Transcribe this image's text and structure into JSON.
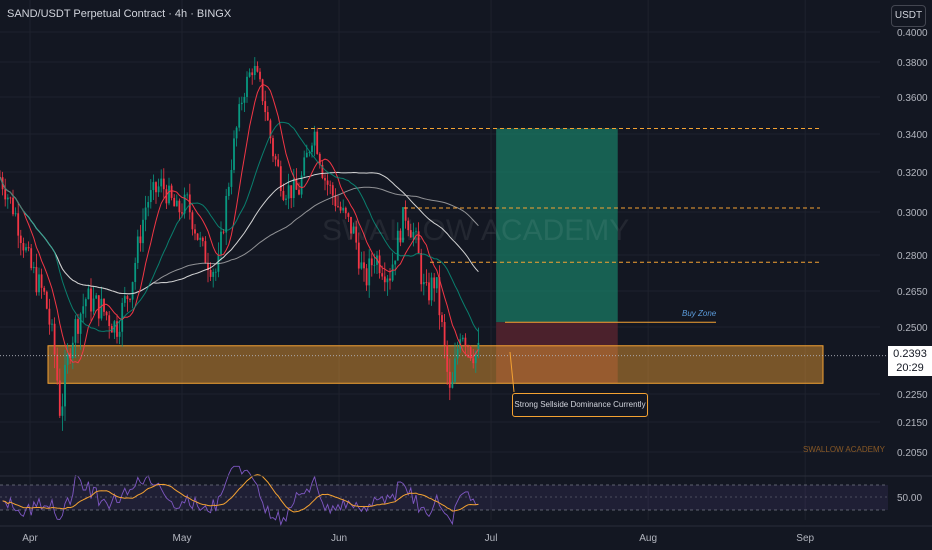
{
  "header": {
    "title": "SAND/USDT Perpetual Contract · 4h · BINGX"
  },
  "currency_label": "USDT",
  "current_price": {
    "value": "0.2393",
    "countdown": "20:29"
  },
  "watermark": "SWALLOW ACADEMY",
  "watermark_small": "SWALLOW ACADEMY",
  "annotations": {
    "buy_zone": "Buy Zone",
    "callout": "Strong Sellside Dominance Currently"
  },
  "colors": {
    "background": "#131722",
    "up_candle": "#089981",
    "down_candle": "#f23645",
    "demand_zone": "#f4a232",
    "target_area": "#1a7a63",
    "stop_area": "#5a2430",
    "sma_long": "#e8e8e8",
    "sma_short": "#c7c7c7",
    "ema_red": "#f23645",
    "ema_green": "#089981",
    "rsi_line": "#7e57c2",
    "rsi_ma": "#f4a232"
  },
  "chart_data": {
    "type": "line",
    "chart_kind": "candlestick",
    "y_axis_ticks": [
      "0.4000",
      "0.3800",
      "0.3600",
      "0.3400",
      "0.3200",
      "0.3000",
      "0.2800",
      "0.2650",
      "0.2500",
      "0.2250",
      "0.2150",
      "0.2050"
    ],
    "x_axis_ticks": [
      "Apr",
      "May",
      "Jun",
      "Jul",
      "Aug",
      "Sep"
    ],
    "price_path": [
      [
        "Mar 26",
        0.318
      ],
      [
        "Mar 29",
        0.3
      ],
      [
        "Apr 1",
        0.275
      ],
      [
        "Apr 4",
        0.262
      ],
      [
        "Apr 6",
        0.238
      ],
      [
        "Apr 7",
        0.218
      ],
      [
        "Apr 9",
        0.245
      ],
      [
        "Apr 12",
        0.262
      ],
      [
        "Apr 15",
        0.258
      ],
      [
        "Apr 18",
        0.25
      ],
      [
        "Apr 21",
        0.268
      ],
      [
        "Apr 24",
        0.305
      ],
      [
        "Apr 27",
        0.314
      ],
      [
        "Apr 30",
        0.3
      ],
      [
        "May 2",
        0.305
      ],
      [
        "May 5",
        0.282
      ],
      [
        "May 8",
        0.272
      ],
      [
        "May 11",
        0.33
      ],
      [
        "May 13",
        0.362
      ],
      [
        "May 15",
        0.378
      ],
      [
        "May 17",
        0.36
      ],
      [
        "May 19",
        0.33
      ],
      [
        "May 21",
        0.312
      ],
      [
        "May 24",
        0.31
      ],
      [
        "May 27",
        0.343
      ],
      [
        "May 29",
        0.318
      ],
      [
        "Jun 1",
        0.302
      ],
      [
        "Jun 4",
        0.29
      ],
      [
        "Jun 6",
        0.268
      ],
      [
        "Jun 8",
        0.28
      ],
      [
        "Jun 11",
        0.272
      ],
      [
        "Jun 14",
        0.3
      ],
      [
        "Jun 16",
        0.288
      ],
      [
        "Jun 18",
        0.262
      ],
      [
        "Jun 20",
        0.27
      ],
      [
        "Jun 22",
        0.238
      ],
      [
        "Jun 23",
        0.222
      ],
      [
        "Jun 25",
        0.251
      ],
      [
        "Jun 27",
        0.242
      ],
      [
        "Jun 29",
        0.2393
      ]
    ],
    "levels": [
      {
        "price": 0.343,
        "style": "dashed"
      },
      {
        "price": 0.302,
        "style": "dashed"
      },
      {
        "price": 0.277,
        "style": "dashed"
      },
      {
        "price": 0.252,
        "style": "solid"
      }
    ],
    "demand_zone": [
      0.229,
      0.243
    ],
    "position": {
      "entry": 0.252,
      "target": 0.343,
      "stop": 0.229,
      "start": "Jul 2",
      "end": "Jul 26"
    },
    "rsi": {
      "midline": "50.00",
      "upper": 70,
      "lower": 30
    }
  }
}
